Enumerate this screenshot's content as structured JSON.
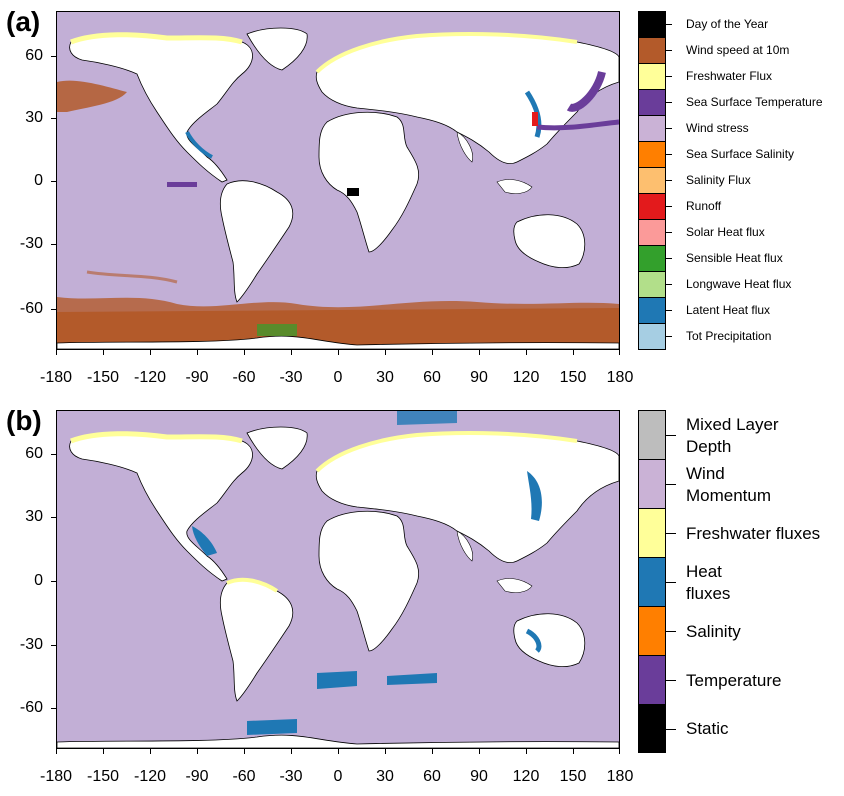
{
  "panels": [
    {
      "label": "(a)",
      "background_color": "#c2afd6",
      "y_ticks": [
        "60",
        "30",
        "0",
        "-30",
        "-60"
      ],
      "x_ticks": [
        "-180",
        "-150",
        "-120",
        "-90",
        "-60",
        "-30",
        "0",
        "30",
        "60",
        "90",
        "120",
        "150",
        "180"
      ],
      "legend": [
        {
          "label": "Day of the Year",
          "color": "#000000"
        },
        {
          "label": "Wind speed at 10m",
          "color": "#b35a2a"
        },
        {
          "label": "Freshwater Flux",
          "color": "#ffff99"
        },
        {
          "label": "Sea Surface Temperature",
          "color": "#6a3d9a"
        },
        {
          "label": "Wind stress",
          "color": "#cab2d6"
        },
        {
          "label": "Sea Surface Salinity",
          "color": "#ff7f00"
        },
        {
          "label": "Salinity Flux",
          "color": "#fdbf6f"
        },
        {
          "label": "Runoff",
          "color": "#e31a1c"
        },
        {
          "label": "Solar Heat flux",
          "color": "#fb9a99"
        },
        {
          "label": "Sensible Heat flux",
          "color": "#33a02c"
        },
        {
          "label": "Longwave Heat flux",
          "color": "#b2df8a"
        },
        {
          "label": "Latent Heat flux",
          "color": "#1f78b4"
        },
        {
          "label": "Tot Precipitation",
          "color": "#a6cee3"
        }
      ]
    },
    {
      "label": "(b)",
      "background_color": "#c2afd6",
      "y_ticks": [
        "60",
        "30",
        "0",
        "-30",
        "-60"
      ],
      "x_ticks": [
        "-180",
        "-150",
        "-120",
        "-90",
        "-60",
        "-30",
        "0",
        "30",
        "60",
        "90",
        "120",
        "150",
        "180"
      ],
      "legend": [
        {
          "label": "Mixed Layer Depth",
          "color": "#bdbdbd"
        },
        {
          "label": "Wind Momentum",
          "color": "#cab2d6"
        },
        {
          "label": "Freshwater fluxes",
          "color": "#ffff99"
        },
        {
          "label": "Heat fluxes",
          "color": "#1f78b4"
        },
        {
          "label": "Salinity",
          "color": "#ff7f00"
        },
        {
          "label": "Temperature",
          "color": "#6a3d9a"
        },
        {
          "label": "Static",
          "color": "#000000"
        }
      ]
    }
  ]
}
